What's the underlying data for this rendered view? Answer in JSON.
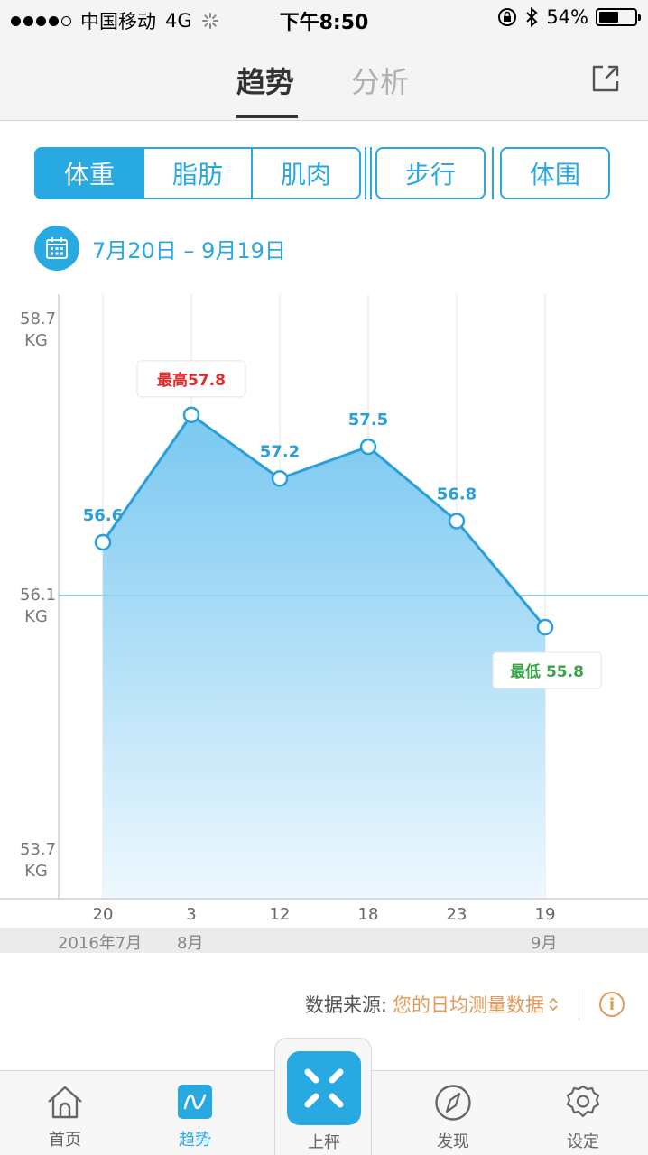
{
  "status_bar": {
    "carrier": "中国移动",
    "network": "4G",
    "time": "下午8:50",
    "battery": "54%",
    "battery_level": 0.54
  },
  "header": {
    "tabs": [
      {
        "label": "趋势",
        "active": true
      },
      {
        "label": "分析",
        "active": false
      }
    ],
    "share_icon": "share-icon"
  },
  "metrics": {
    "segments": [
      {
        "label": "体重",
        "active": true
      },
      {
        "label": "脂肪",
        "active": false
      },
      {
        "label": "肌肉",
        "active": false
      },
      {
        "label": "步行",
        "active": false
      },
      {
        "label": "体围",
        "active": false
      }
    ]
  },
  "date_range": {
    "icon": "calendar-icon",
    "text": "7月20日 – 9月19日"
  },
  "colors": {
    "accent": "#29a9e1",
    "max": "#e12b2b",
    "min": "#3aa14a",
    "source": "#e39a57"
  },
  "chart_data": {
    "type": "area",
    "x": [
      "20",
      "3",
      "12",
      "18",
      "23",
      "19"
    ],
    "x_groups": [
      "2016年7月",
      "8月",
      "",
      "",
      "",
      "9月"
    ],
    "values": [
      56.6,
      57.8,
      57.2,
      57.5,
      56.8,
      55.8
    ],
    "point_labels": [
      "56.6",
      "最高57.8",
      "57.2",
      "57.5",
      "56.8",
      "最低 55.8"
    ],
    "y_ticks": [
      {
        "value": 58.7,
        "label": "58.7",
        "unit": "KG"
      },
      {
        "value": 56.1,
        "label": "56.1",
        "unit": "KG"
      },
      {
        "value": 53.7,
        "label": "53.7",
        "unit": "KG"
      }
    ],
    "ylim": [
      53.7,
      58.7
    ],
    "reference_line": 56.1,
    "max_label": "最高57.8",
    "min_label": "最低 55.8"
  },
  "source": {
    "label": "数据来源:",
    "value": "您的日均测量数据"
  },
  "bottom_nav": {
    "items": [
      {
        "label": "首页",
        "icon": "home-icon"
      },
      {
        "label": "趋势",
        "icon": "trend-icon"
      },
      {
        "label": "上秤",
        "icon": "scale-icon"
      },
      {
        "label": "发现",
        "icon": "compass-icon"
      },
      {
        "label": "设定",
        "icon": "gear-icon"
      }
    ]
  }
}
